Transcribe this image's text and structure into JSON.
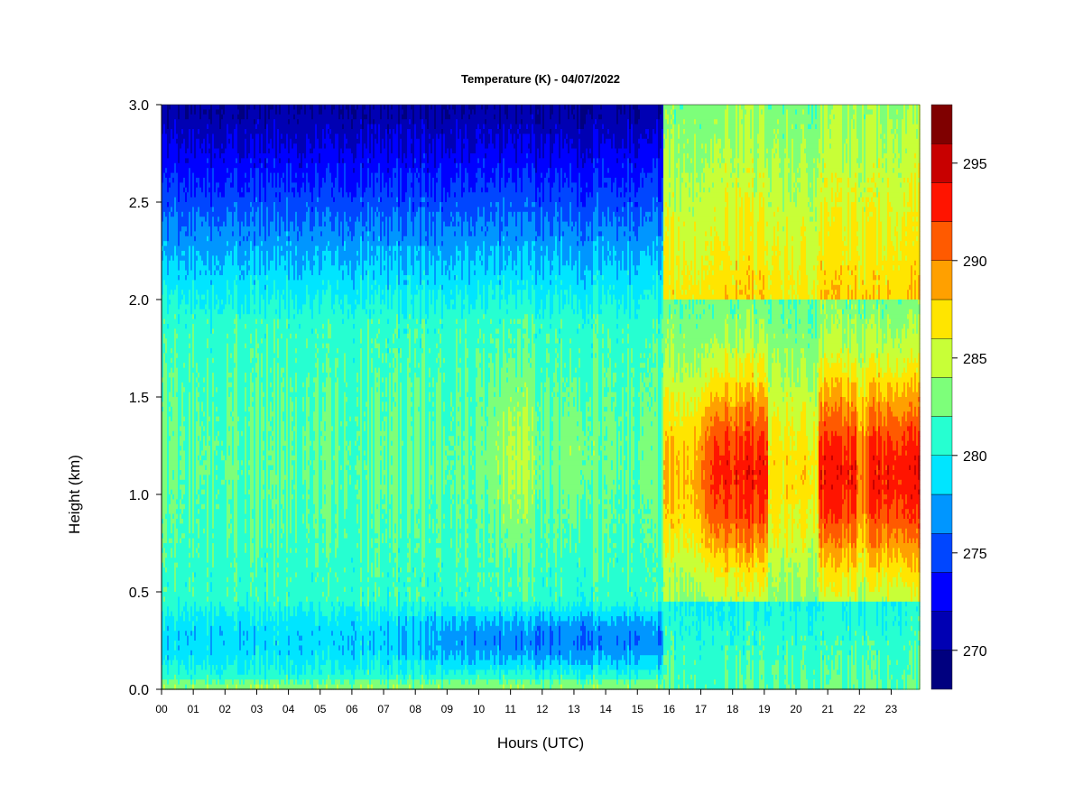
{
  "chart_data": {
    "type": "heatmap",
    "title": "Temperature (K) - 04/07/2022",
    "xlabel": "Hours (UTC)",
    "ylabel": "Height (km)",
    "xlim": [
      0,
      23.85
    ],
    "ylim": [
      0,
      3.0
    ],
    "x_ticks": [
      "00",
      "01",
      "02",
      "03",
      "04",
      "05",
      "06",
      "07",
      "08",
      "09",
      "10",
      "11",
      "12",
      "13",
      "14",
      "15",
      "16",
      "17",
      "18",
      "19",
      "20",
      "21",
      "22",
      "23"
    ],
    "y_ticks": [
      "0.0",
      "0.5",
      "1.0",
      "1.5",
      "2.0",
      "2.5",
      "3.0"
    ],
    "colorbar": {
      "min": 268,
      "max": 298,
      "ticks": [
        "270",
        "275",
        "280",
        "285",
        "290",
        "295"
      ],
      "colors": [
        "#00007f",
        "#0000b3",
        "#0000ff",
        "#0046ff",
        "#0096ff",
        "#00e5ff",
        "#26ffd1",
        "#7dff7a",
        "#c8ff37",
        "#ffe500",
        "#ffa000",
        "#ff5a00",
        "#ff1400",
        "#c80000",
        "#7f0000"
      ]
    },
    "data_description_points": {
      "regimes": [
        {
          "hours": [
            0,
            15.8
          ],
          "surface_K": 283,
          "near_surface_0_3km_K": 276,
          "mid_1km_K": 281,
          "top_3km_K": 269
        },
        {
          "hours": [
            15.8,
            23.85
          ],
          "surface_K": 282,
          "near_surface_0_3km_K": 280,
          "mid_1km_K": 293,
          "top_3km_K": 281
        }
      ]
    }
  }
}
